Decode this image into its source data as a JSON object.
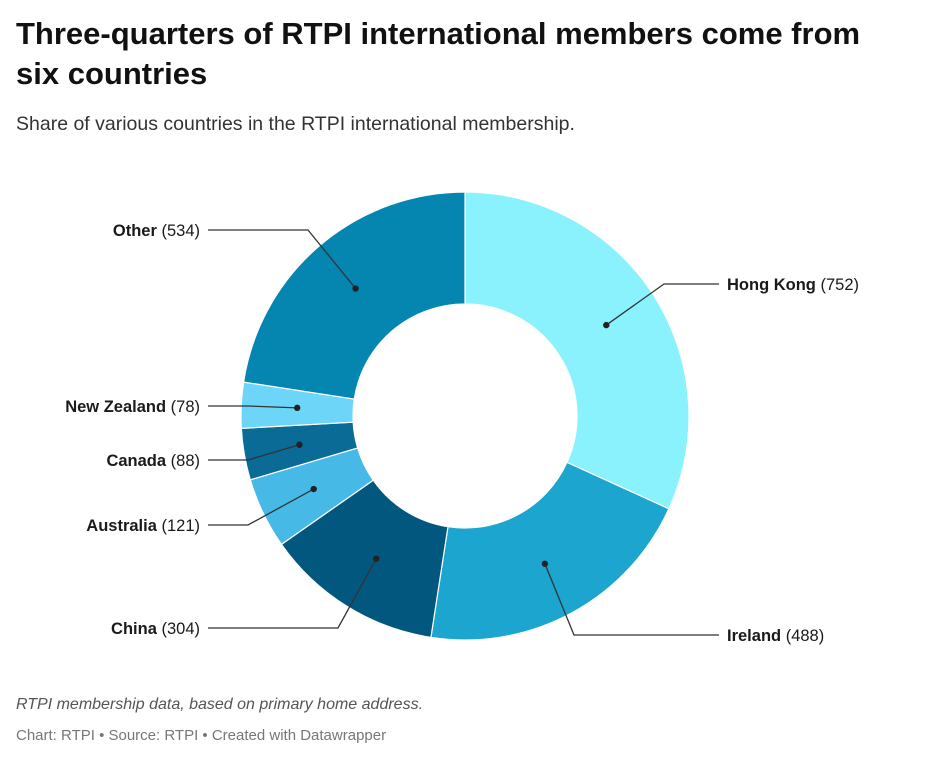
{
  "title": "Three-quarters of RTPI international members come from six countries",
  "subtitle": "Share of various countries in the RTPI international membership.",
  "note": "RTPI membership data, based on primary home address.",
  "footer": "Chart: RTPI • Source: RTPI • Created with Datawrapper",
  "chart_data": {
    "type": "pie",
    "donut": true,
    "title": "Three-quarters of RTPI international members come from six countries",
    "subtitle": "Share of various countries in the RTPI international membership.",
    "slices": [
      {
        "label": "Hong Kong",
        "value": 752,
        "color": "#8af2fd"
      },
      {
        "label": "Ireland",
        "value": 488,
        "color": "#1ba5cf"
      },
      {
        "label": "China",
        "value": 304,
        "color": "#02577e"
      },
      {
        "label": "Australia",
        "value": 121,
        "color": "#46b9e6"
      },
      {
        "label": "Canada",
        "value": 88,
        "color": "#0a6b96"
      },
      {
        "label": "New Zealand",
        "value": 78,
        "color": "#6dd6f8"
      },
      {
        "label": "Other",
        "value": 534,
        "color": "#0486b1"
      }
    ]
  }
}
